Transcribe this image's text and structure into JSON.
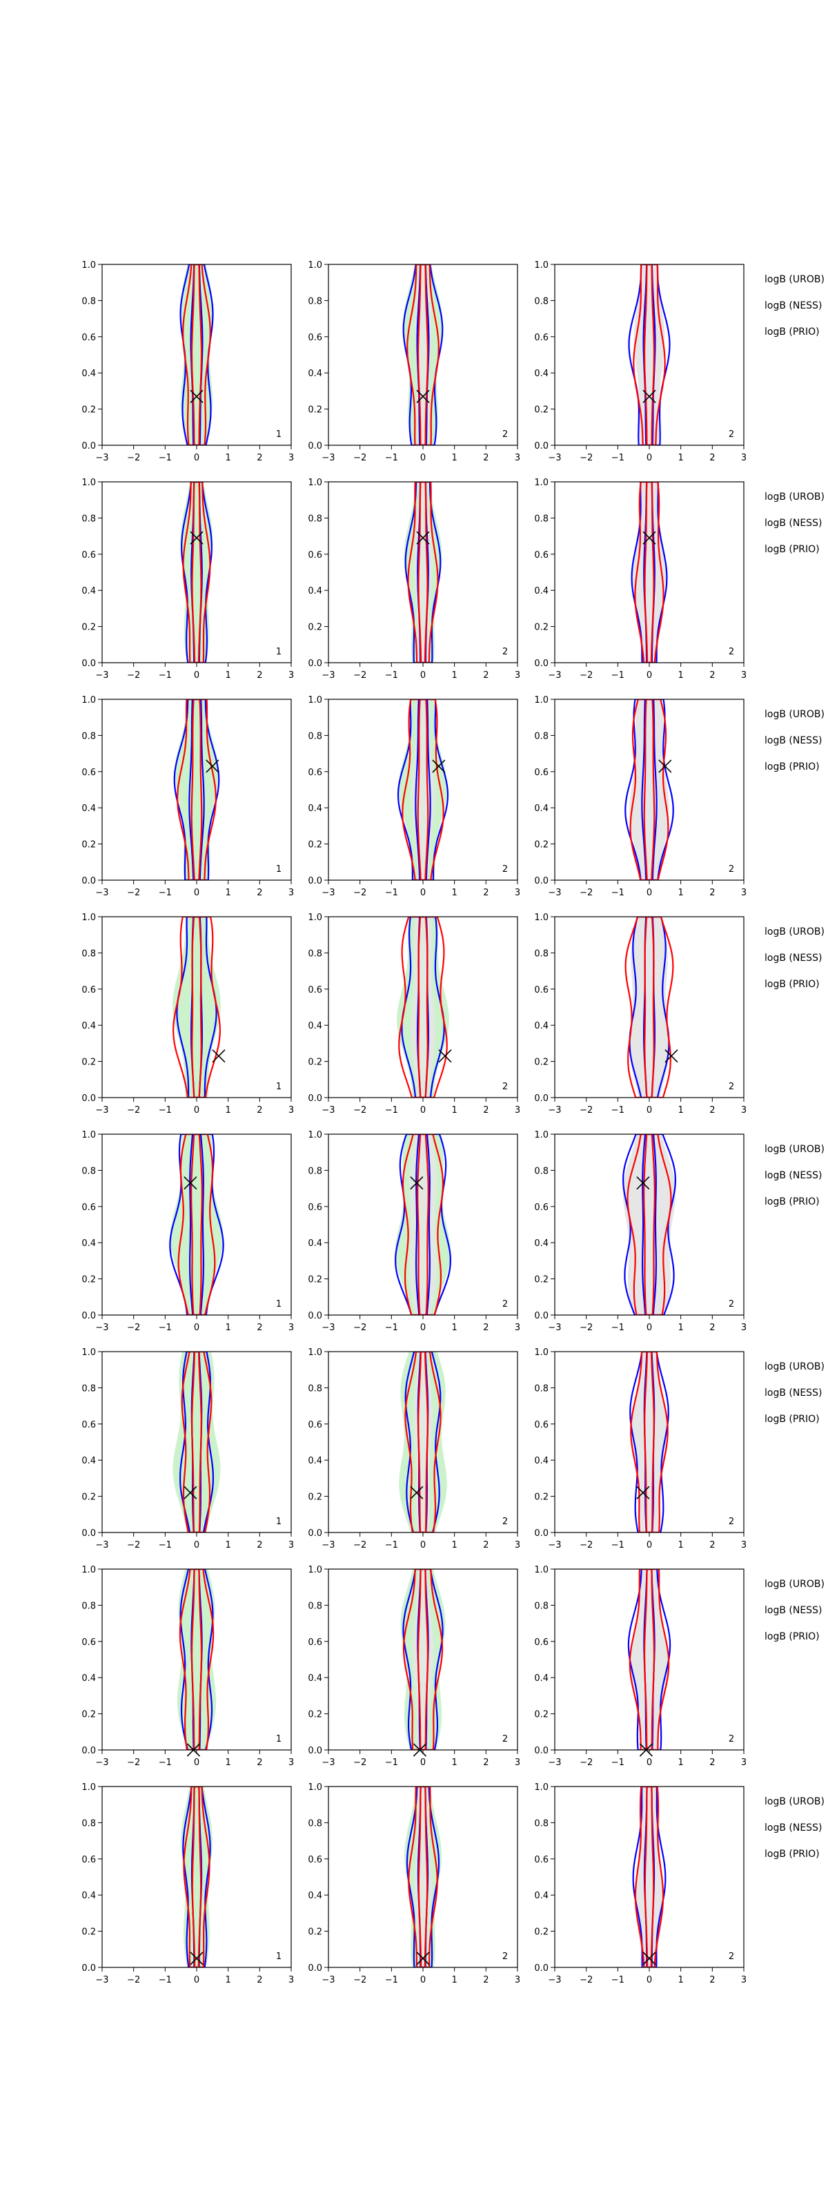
{
  "chart_data": {
    "type": "contour",
    "grid": "3-column x 8-row panel grid",
    "xlim": [
      -3,
      3
    ],
    "ylim": [
      0,
      1
    ],
    "x_ticks": [
      "−3",
      "−2",
      "−1",
      "0",
      "1",
      "2",
      "3"
    ],
    "y_ticks": [
      "0.0",
      "0.2",
      "0.4",
      "0.6",
      "0.8",
      "1.0"
    ],
    "series_colors": {
      "green_fill": "#ccf2cc",
      "grey_fill": "#e6e6e6",
      "red": "#ff0000",
      "blue": "#0000ff"
    },
    "column_corner_labels": [
      "1",
      "2",
      "2"
    ],
    "side_labels": [
      "logB (UROB)",
      "logB (NESS)",
      "logB (PRIO)"
    ],
    "rows": [
      {
        "marker": [
          0.0,
          0.27
        ],
        "blue_outer": 0.7,
        "blue_inner": 0.22,
        "red_outer": 0.55,
        "red_inner": 0.18,
        "green": 0.68,
        "grey": 0.55
      },
      {
        "marker": [
          0.0,
          0.69
        ],
        "blue_outer": 0.6,
        "blue_inner": 0.2,
        "red_outer": 0.52,
        "red_inner": 0.17,
        "green": 0.62,
        "grey": 0.58
      },
      {
        "marker": [
          0.5,
          0.63
        ],
        "blue_outer": 0.85,
        "blue_inner": 0.28,
        "red_outer": 0.75,
        "red_inner": 0.2,
        "green": 0.78,
        "grey": 0.72
      },
      {
        "marker": [
          0.7,
          0.23
        ],
        "blue_outer": 0.75,
        "blue_inner": 0.22,
        "red_outer": 0.95,
        "red_inner": 0.2,
        "green": 0.85,
        "grey": 0.8
      },
      {
        "marker": [
          -0.2,
          0.73
        ],
        "blue_outer": 1.05,
        "blue_inner": 0.3,
        "red_outer": 0.8,
        "red_inner": 0.22,
        "green": 0.95,
        "grey": 1.0
      },
      {
        "marker": [
          -0.2,
          0.22
        ],
        "blue_outer": 0.7,
        "blue_inner": 0.2,
        "red_outer": 0.65,
        "red_inner": 0.18,
        "green": 0.9,
        "grey": 0.62
      },
      {
        "marker": [
          -0.1,
          0.0
        ],
        "blue_outer": 0.72,
        "blue_inner": 0.2,
        "red_outer": 0.68,
        "red_inner": 0.18,
        "green": 0.8,
        "grey": 0.65
      },
      {
        "marker": [
          0.0,
          0.05
        ],
        "blue_outer": 0.55,
        "blue_inner": 0.18,
        "red_outer": 0.5,
        "red_inner": 0.16,
        "green": 0.62,
        "grey": 0.52
      }
    ]
  }
}
